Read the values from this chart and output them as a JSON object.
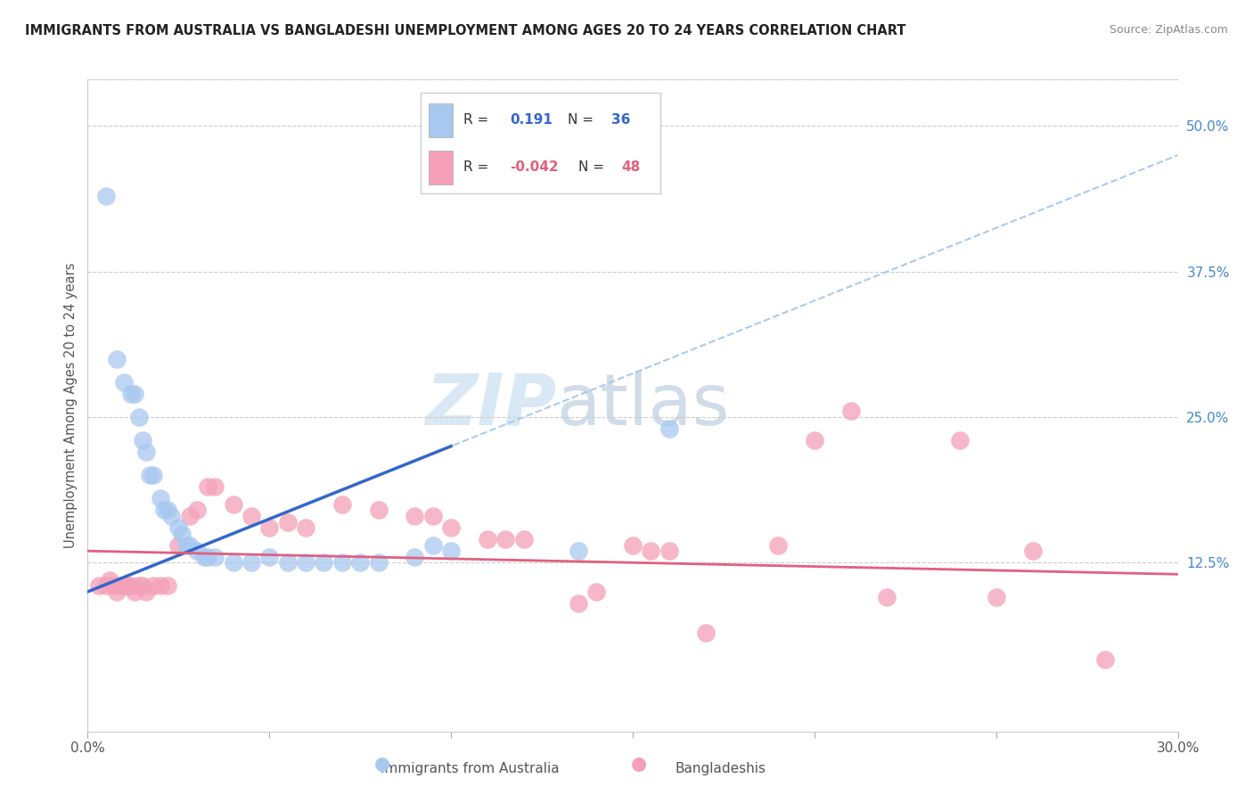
{
  "title": "IMMIGRANTS FROM AUSTRALIA VS BANGLADESHI UNEMPLOYMENT AMONG AGES 20 TO 24 YEARS CORRELATION CHART",
  "source": "Source: ZipAtlas.com",
  "ylabel": "Unemployment Among Ages 20 to 24 years",
  "xlim": [
    0.0,
    0.3
  ],
  "ylim": [
    -0.02,
    0.54
  ],
  "right_yticks": [
    0.125,
    0.25,
    0.375,
    0.5
  ],
  "right_ytick_labels": [
    "12.5%",
    "25.0%",
    "37.5%",
    "50.0%"
  ],
  "color_blue": "#A8C8F0",
  "color_blue_line": "#3366CC",
  "color_pink": "#F4A0B8",
  "color_pink_line": "#E06080",
  "color_dashed": "#AACCEE",
  "watermark_zip": "ZIP",
  "watermark_atlas": "atlas",
  "blue_R": 0.191,
  "blue_N": 36,
  "pink_R": -0.042,
  "pink_N": 48,
  "blue_line_x": [
    0.0,
    0.1
  ],
  "blue_line_y": [
    0.1,
    0.225
  ],
  "dash_line_x": [
    0.0,
    0.3
  ],
  "dash_line_y": [
    0.1,
    0.475
  ],
  "pink_line_x": [
    0.0,
    0.3
  ],
  "pink_line_y": [
    0.135,
    0.115
  ],
  "blue_scatter_x": [
    0.005,
    0.008,
    0.01,
    0.012,
    0.013,
    0.014,
    0.015,
    0.016,
    0.017,
    0.018,
    0.02,
    0.021,
    0.022,
    0.023,
    0.025,
    0.026,
    0.027,
    0.028,
    0.03,
    0.032,
    0.033,
    0.035,
    0.04,
    0.045,
    0.05,
    0.055,
    0.06,
    0.065,
    0.07,
    0.075,
    0.08,
    0.09,
    0.095,
    0.1,
    0.135,
    0.16
  ],
  "blue_scatter_y": [
    0.44,
    0.3,
    0.28,
    0.27,
    0.27,
    0.25,
    0.23,
    0.22,
    0.2,
    0.2,
    0.18,
    0.17,
    0.17,
    0.165,
    0.155,
    0.15,
    0.14,
    0.14,
    0.135,
    0.13,
    0.13,
    0.13,
    0.125,
    0.125,
    0.13,
    0.125,
    0.125,
    0.125,
    0.125,
    0.125,
    0.125,
    0.13,
    0.14,
    0.135,
    0.135,
    0.24
  ],
  "pink_scatter_x": [
    0.003,
    0.005,
    0.006,
    0.007,
    0.008,
    0.009,
    0.01,
    0.011,
    0.012,
    0.013,
    0.014,
    0.015,
    0.016,
    0.018,
    0.02,
    0.022,
    0.025,
    0.028,
    0.03,
    0.033,
    0.035,
    0.04,
    0.045,
    0.05,
    0.055,
    0.06,
    0.07,
    0.08,
    0.09,
    0.095,
    0.1,
    0.11,
    0.115,
    0.12,
    0.135,
    0.14,
    0.15,
    0.155,
    0.16,
    0.17,
    0.19,
    0.2,
    0.21,
    0.22,
    0.24,
    0.25,
    0.26,
    0.28
  ],
  "pink_scatter_y": [
    0.105,
    0.105,
    0.11,
    0.105,
    0.1,
    0.105,
    0.105,
    0.105,
    0.105,
    0.1,
    0.105,
    0.105,
    0.1,
    0.105,
    0.105,
    0.105,
    0.14,
    0.165,
    0.17,
    0.19,
    0.19,
    0.175,
    0.165,
    0.155,
    0.16,
    0.155,
    0.175,
    0.17,
    0.165,
    0.165,
    0.155,
    0.145,
    0.145,
    0.145,
    0.09,
    0.1,
    0.14,
    0.135,
    0.135,
    0.065,
    0.14,
    0.23,
    0.255,
    0.095,
    0.23,
    0.095,
    0.135,
    0.042
  ]
}
